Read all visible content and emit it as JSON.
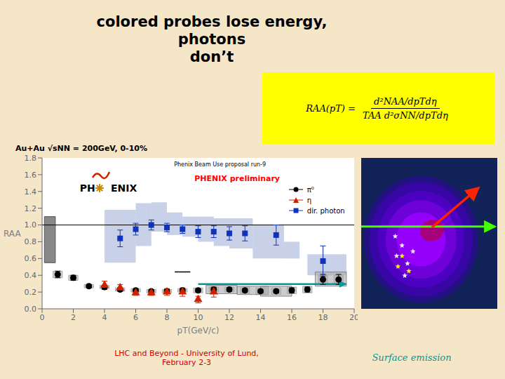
{
  "chart_data": {
    "type": "scatter",
    "title": "colored probes lose energy, photons\ndon’t",
    "subtitle": "Au+Au √sNN = 200GeV, 0-10%",
    "formula": {
      "left": "RAA(pT) =",
      "numerator": "d²NAA/dpTdη",
      "denominator": "TAA d²σNN/dpTdη",
      "color": "#ffff00"
    },
    "plot_label": "Phenix Beam Use proposal run-9",
    "phenix_label": "PHENIX preliminary",
    "logo": [
      "PH",
      "ENIX"
    ],
    "bottom_text": "LHC and Beyond - University of Lund,\nFebruary 2-3",
    "surface_text": "Surface emission",
    "xlabel": "pT(GeV/c)",
    "ylabel": "RAA",
    "xlim": [
      0,
      20
    ],
    "ylim": [
      0,
      1.8
    ],
    "xticks": [
      0,
      2,
      4,
      6,
      8,
      10,
      12,
      14,
      16,
      18,
      20
    ],
    "yticks": [
      {
        "value": 0,
        "label": "0.0"
      },
      0.2,
      0.4,
      0.6,
      0.8,
      {
        "value": 1,
        "label": "1.0"
      },
      1.2,
      1.4,
      1.6,
      1.8
    ],
    "grid": false,
    "legend": "upper right",
    "series": [
      {
        "name": "π⁰",
        "color": "#000000",
        "marker": "circle",
        "x": [
          1,
          2,
          3,
          4,
          5,
          6,
          7,
          8,
          9,
          10,
          11,
          12,
          13,
          14,
          15,
          16,
          17,
          18,
          19
        ],
        "values": [
          0.41,
          0.37,
          0.27,
          0.26,
          0.23,
          0.22,
          0.21,
          0.21,
          0.22,
          0.22,
          0.23,
          0.23,
          0.22,
          0.21,
          0.21,
          0.22,
          0.23,
          0.35,
          0.35
        ],
        "errors": [
          0.04,
          0.03,
          0.02,
          0.02,
          0.02,
          0.02,
          0.02,
          0.02,
          0.02,
          0.02,
          0.02,
          0.02,
          0.02,
          0.02,
          0.02,
          0.03,
          0.03,
          0.06,
          0.06
        ],
        "sys": [
          0.04,
          0.03,
          0.02,
          0.02,
          0.02,
          0.02,
          0.02,
          0.02,
          0.02,
          0.03,
          0.03,
          0.03,
          0.04,
          0.04,
          0.04,
          0.04,
          0.04,
          0.05,
          0.05
        ]
      },
      {
        "name": "η",
        "color": "#cc2200",
        "marker": "triangle",
        "x": [
          4,
          5,
          6,
          7,
          8,
          9,
          10,
          11
        ],
        "values": [
          0.28,
          0.25,
          0.19,
          0.19,
          0.2,
          0.2,
          0.11,
          0.2
        ],
        "errors": [
          0.05,
          0.04,
          0.03,
          0.03,
          0.04,
          0.05,
          0.04,
          0.06
        ]
      },
      {
        "name": "dir. photon",
        "color": "#1133bb",
        "marker": "square",
        "x": [
          5,
          6,
          7,
          8,
          9,
          10,
          11,
          12,
          13,
          15,
          18
        ],
        "values": [
          0.84,
          0.95,
          1.0,
          0.97,
          0.95,
          0.92,
          0.92,
          0.9,
          0.9,
          0.88,
          0.57
        ],
        "errors": [
          0.1,
          0.07,
          0.06,
          0.05,
          0.05,
          0.07,
          0.07,
          0.08,
          0.09,
          0.12,
          0.18
        ]
      }
    ],
    "band": {
      "color": "#8899cc",
      "segments": [
        [
          4.0,
          6.0,
          0.55,
          1.18
        ],
        [
          6.0,
          7.0,
          0.75,
          1.26
        ],
        [
          7.0,
          8.0,
          0.92,
          1.27
        ],
        [
          8.0,
          9.0,
          0.88,
          1.15
        ],
        [
          9.0,
          10.0,
          0.86,
          1.1
        ],
        [
          10.0,
          11.0,
          0.8,
          1.1
        ],
        [
          11.0,
          12.0,
          0.75,
          1.08
        ],
        [
          12.0,
          13.5,
          0.72,
          1.08
        ],
        [
          13.5,
          15.5,
          0.6,
          1.0
        ],
        [
          15.5,
          16.5,
          0.6,
          0.8
        ],
        [
          17.0,
          19.5,
          0.4,
          0.65
        ]
      ]
    },
    "sys_boxes": {
      "color": "#aaaaaa",
      "boxes": [
        [
          10.5,
          12.5,
          0.18,
          0.28
        ],
        [
          12.5,
          14.5,
          0.17,
          0.27
        ],
        [
          14.0,
          16.0,
          0.15,
          0.27
        ],
        [
          17.5,
          19.5,
          0.27,
          0.44
        ]
      ]
    },
    "norm_box": {
      "color": "#888888",
      "box": [
        0.15,
        0.85,
        0.55,
        1.1
      ]
    },
    "reference_line": 1.0,
    "dash": {
      "x": [
        8.5,
        9.5
      ],
      "y": [
        0.44,
        0.44
      ]
    },
    "arrow": {
      "x": [
        10.0,
        19.5
      ],
      "y": 0.295,
      "color": "#009999"
    }
  }
}
